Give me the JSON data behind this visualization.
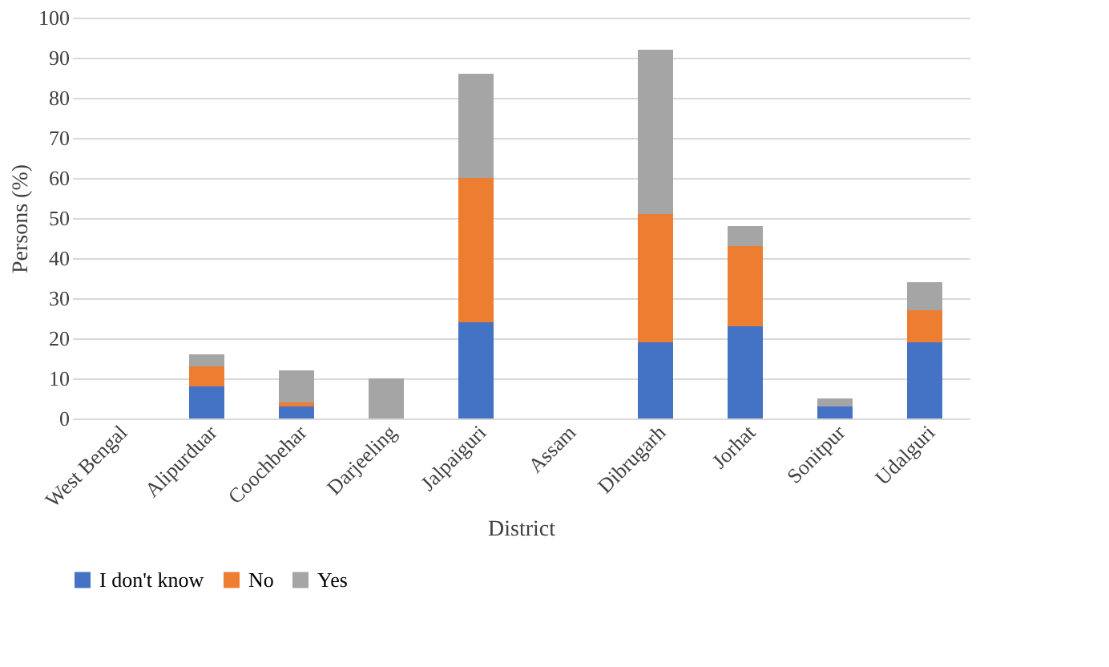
{
  "chart_data": {
    "type": "bar",
    "stacked": true,
    "xlabel": "District",
    "ylabel": "Persons (%)",
    "categories": [
      "West Bengal",
      "Alipurduar",
      "Coochbehar",
      "Darjeeling",
      "Jalpaiguri",
      "Assam",
      "Dibrugarh",
      "Jorhat",
      "Sonitpur",
      "Udalguri"
    ],
    "series": [
      {
        "name": "I don't know",
        "color": "#4472c4",
        "values": [
          null,
          8,
          3,
          0,
          24,
          null,
          19,
          23,
          3,
          19
        ]
      },
      {
        "name": "No",
        "color": "#ed7d31",
        "values": [
          null,
          5,
          1,
          0,
          36,
          null,
          32,
          20,
          0,
          8
        ]
      },
      {
        "name": "Yes",
        "color": "#a5a5a5",
        "values": [
          null,
          3,
          8,
          10,
          26,
          null,
          41,
          5,
          2,
          7
        ]
      }
    ],
    "ylim": [
      0,
      100
    ],
    "yticks": [
      0,
      10,
      20,
      30,
      40,
      50,
      60,
      70,
      80,
      90,
      100
    ],
    "grid": "y",
    "legend": "bottom"
  }
}
